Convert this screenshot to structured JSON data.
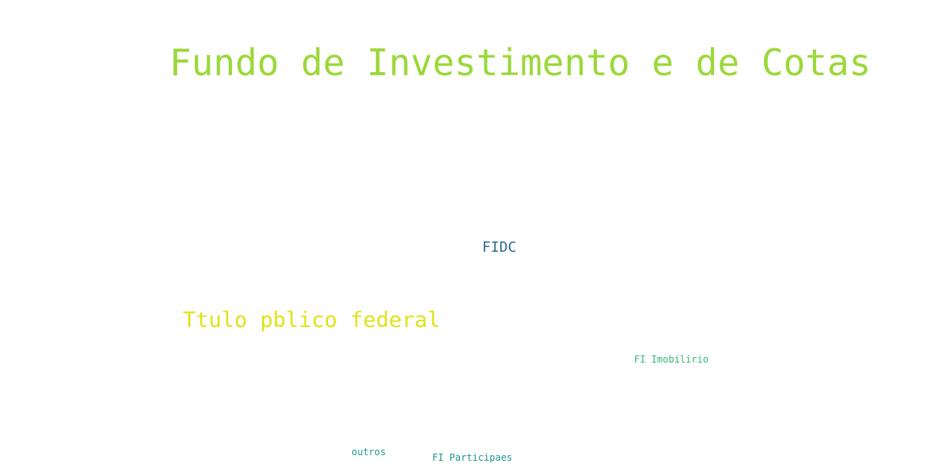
{
  "words": [
    {
      "text": "Fundo de Investimento e de Cotas",
      "color": "#9bd83a"
    },
    {
      "text": "FIDC",
      "color": "#2e6c8e"
    },
    {
      "text": "Ttulo pblico federal",
      "color": "#dfe318"
    },
    {
      "text": "FI Imobilirio",
      "color": "#35b779"
    },
    {
      "text": "outros",
      "color": "#1f9a8a"
    },
    {
      "text": "FI Participaes",
      "color": "#22958b"
    }
  ]
}
